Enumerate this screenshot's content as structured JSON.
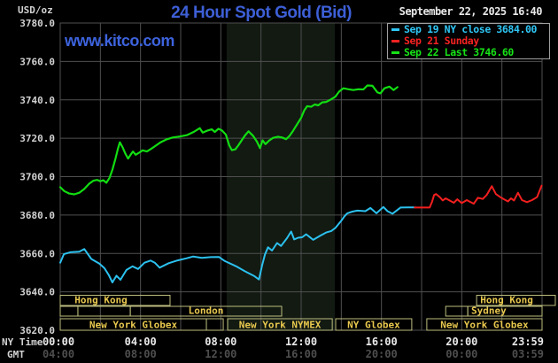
{
  "header": {
    "title": "24 Hour Spot Gold (Bid)",
    "unit_label": "USD/oz",
    "watermark": "www.kitco.com",
    "datetime": "September 22, 2025 16:40"
  },
  "colors": {
    "title_blue": "#3d5fd6",
    "watermark_blue": "#3d63dd",
    "grid": "#4f4f4f",
    "band": "#121a12",
    "axis_text": "#d2d2d2",
    "x_text": "#e9e9e9",
    "gmt_text": "#4e4e4e",
    "session_border": "#bdbd7d",
    "session_text": "#e8c84e",
    "legend_border": "#9f9f9f",
    "white_text": "#e8e8e8"
  },
  "legend": {
    "items": [
      {
        "label": "Sep 19 NY close 3684.00",
        "color": "#2fc6f5"
      },
      {
        "label": "Sep 21 Sunday",
        "color": "#f52222"
      },
      {
        "label": "Sep 22 Last 3746.60",
        "color": "#17e317"
      }
    ]
  },
  "axes": {
    "y_tick_labels": [
      "3780.0",
      "3760.0",
      "3740.0",
      "3720.0",
      "3700.0",
      "3680.0",
      "3660.0",
      "3640.0",
      "3620.0"
    ],
    "y_tick_values": [
      3780,
      3760,
      3740,
      3720,
      3700,
      3680,
      3660,
      3640,
      3620
    ],
    "x_row1_label": "NY Time",
    "x_row2_label": "GMT",
    "x_tick_hours": [
      0,
      4,
      8,
      12,
      16,
      20,
      24
    ],
    "x_row1_ticks": [
      "00:00",
      "04:00",
      "08:00",
      "12:00",
      "16:00",
      "20:00",
      "23:59"
    ],
    "x_row2_ticks": [
      "04:00",
      "08:00",
      "12:00",
      "16:00",
      "20:00",
      "00:00",
      "03:59"
    ]
  },
  "chart_data": {
    "type": "line",
    "title": "24 Hour Spot Gold (Bid)",
    "xlabel": "NY Time (hours)",
    "ylabel": "USD/oz",
    "xlim": [
      0,
      24
    ],
    "ylim": [
      3620,
      3780
    ],
    "grid": true,
    "legend_position": "top-right",
    "nymex_band": {
      "from": 8.29,
      "to": 13.68
    },
    "series": [
      {
        "name": "Sep 19 NY close",
        "color": "#2cc1ef",
        "width": 2,
        "points": [
          [
            0,
            3655.2
          ],
          [
            0.18,
            3659.6
          ],
          [
            0.5,
            3660.6
          ],
          [
            0.95,
            3660.9
          ],
          [
            1.2,
            3662.3
          ],
          [
            1.55,
            3657.1
          ],
          [
            1.95,
            3654.7
          ],
          [
            2.2,
            3652.3
          ],
          [
            2.42,
            3648.7
          ],
          [
            2.6,
            3644.9
          ],
          [
            2.8,
            3648.4
          ],
          [
            3.0,
            3646.3
          ],
          [
            3.3,
            3651.4
          ],
          [
            3.6,
            3653.3
          ],
          [
            3.88,
            3651.9
          ],
          [
            4.2,
            3655.2
          ],
          [
            4.5,
            3656.3
          ],
          [
            4.72,
            3655.1
          ],
          [
            4.95,
            3652.6
          ],
          [
            5.4,
            3654.9
          ],
          [
            5.85,
            3656.4
          ],
          [
            6.3,
            3657.5
          ],
          [
            6.62,
            3658.4
          ],
          [
            7.05,
            3657.7
          ],
          [
            7.5,
            3658.1
          ],
          [
            7.9,
            3658.2
          ],
          [
            8.2,
            3656.0
          ],
          [
            8.8,
            3653.1
          ],
          [
            9.2,
            3650.7
          ],
          [
            9.65,
            3648.3
          ],
          [
            9.9,
            3646.4
          ],
          [
            10.05,
            3653.5
          ],
          [
            10.2,
            3659.5
          ],
          [
            10.35,
            3663.2
          ],
          [
            10.55,
            3661.5
          ],
          [
            10.8,
            3665.4
          ],
          [
            11.0,
            3663.9
          ],
          [
            11.3,
            3668.0
          ],
          [
            11.5,
            3671.4
          ],
          [
            11.65,
            3667.3
          ],
          [
            11.85,
            3668.2
          ],
          [
            12.05,
            3668.4
          ],
          [
            12.25,
            3670.0
          ],
          [
            12.45,
            3668.3
          ],
          [
            12.6,
            3667.1
          ],
          [
            12.95,
            3669.2
          ],
          [
            13.25,
            3670.9
          ],
          [
            13.5,
            3671.7
          ],
          [
            13.7,
            3673.2
          ],
          [
            14.0,
            3677.0
          ],
          [
            14.15,
            3679.2
          ],
          [
            14.3,
            3680.9
          ],
          [
            14.55,
            3681.8
          ],
          [
            14.8,
            3682.3
          ],
          [
            15.2,
            3682.0
          ],
          [
            15.45,
            3683.7
          ],
          [
            15.75,
            3680.9
          ],
          [
            16.1,
            3684.2
          ],
          [
            16.3,
            3682.0
          ],
          [
            16.55,
            3680.7
          ],
          [
            16.95,
            3683.9
          ],
          [
            17.3,
            3684.0
          ],
          [
            17.65,
            3684.0
          ]
        ]
      },
      {
        "name": "Sep 21 Sunday",
        "color": "#f31f1f",
        "width": 2,
        "points": [
          [
            17.65,
            3683.9
          ],
          [
            18.4,
            3683.9
          ],
          [
            18.52,
            3686.9
          ],
          [
            18.62,
            3690.4
          ],
          [
            18.72,
            3690.9
          ],
          [
            18.9,
            3689.4
          ],
          [
            19.05,
            3687.6
          ],
          [
            19.2,
            3688.7
          ],
          [
            19.6,
            3686.4
          ],
          [
            19.78,
            3688.2
          ],
          [
            20.0,
            3686.2
          ],
          [
            20.25,
            3687.8
          ],
          [
            20.6,
            3685.9
          ],
          [
            20.8,
            3689.0
          ],
          [
            21.05,
            3688.4
          ],
          [
            21.25,
            3690.6
          ],
          [
            21.5,
            3695.0
          ],
          [
            21.7,
            3690.9
          ],
          [
            21.95,
            3689.1
          ],
          [
            22.3,
            3687.1
          ],
          [
            22.45,
            3688.7
          ],
          [
            22.6,
            3687.6
          ],
          [
            22.8,
            3691.6
          ],
          [
            23.0,
            3687.8
          ],
          [
            23.25,
            3686.7
          ],
          [
            23.5,
            3687.8
          ],
          [
            23.75,
            3689.3
          ],
          [
            23.98,
            3695.3
          ]
        ]
      },
      {
        "name": "Sep 22 Last",
        "color": "#12dd12",
        "width": 2.2,
        "points": [
          [
            0,
            3694.5
          ],
          [
            0.2,
            3692.5
          ],
          [
            0.45,
            3691.2
          ],
          [
            0.7,
            3690.8
          ],
          [
            0.95,
            3691.6
          ],
          [
            1.2,
            3693.6
          ],
          [
            1.45,
            3696.4
          ],
          [
            1.65,
            3697.9
          ],
          [
            1.85,
            3698.3
          ],
          [
            2.0,
            3697.6
          ],
          [
            2.15,
            3698.1
          ],
          [
            2.3,
            3696.8
          ],
          [
            2.45,
            3699.2
          ],
          [
            2.6,
            3703.6
          ],
          [
            2.75,
            3709.2
          ],
          [
            2.88,
            3714.8
          ],
          [
            2.97,
            3717.9
          ],
          [
            3.1,
            3715.4
          ],
          [
            3.25,
            3711.8
          ],
          [
            3.38,
            3709.4
          ],
          [
            3.52,
            3711.6
          ],
          [
            3.62,
            3713.1
          ],
          [
            3.76,
            3711.4
          ],
          [
            3.92,
            3712.4
          ],
          [
            4.1,
            3713.7
          ],
          [
            4.32,
            3713.1
          ],
          [
            4.55,
            3714.6
          ],
          [
            4.75,
            3716.1
          ],
          [
            5.0,
            3717.9
          ],
          [
            5.3,
            3719.4
          ],
          [
            5.6,
            3720.4
          ],
          [
            5.95,
            3720.9
          ],
          [
            6.3,
            3721.6
          ],
          [
            6.65,
            3723.3
          ],
          [
            6.95,
            3725.2
          ],
          [
            7.1,
            3722.9
          ],
          [
            7.3,
            3723.9
          ],
          [
            7.55,
            3724.6
          ],
          [
            7.7,
            3723.3
          ],
          [
            7.88,
            3724.9
          ],
          [
            8.05,
            3724.1
          ],
          [
            8.25,
            3721.9
          ],
          [
            8.42,
            3716.2
          ],
          [
            8.55,
            3713.8
          ],
          [
            8.72,
            3714.2
          ],
          [
            8.88,
            3716.4
          ],
          [
            9.05,
            3719.1
          ],
          [
            9.2,
            3721.4
          ],
          [
            9.38,
            3723.6
          ],
          [
            9.6,
            3721.3
          ],
          [
            9.8,
            3718.2
          ],
          [
            9.95,
            3714.9
          ],
          [
            10.08,
            3718.9
          ],
          [
            10.22,
            3716.9
          ],
          [
            10.4,
            3718.7
          ],
          [
            10.6,
            3720.2
          ],
          [
            10.85,
            3720.8
          ],
          [
            11.05,
            3720.4
          ],
          [
            11.25,
            3719.5
          ],
          [
            11.42,
            3721.2
          ],
          [
            11.6,
            3723.9
          ],
          [
            11.8,
            3727.3
          ],
          [
            12.0,
            3730.6
          ],
          [
            12.15,
            3734.4
          ],
          [
            12.3,
            3736.7
          ],
          [
            12.5,
            3736.4
          ],
          [
            12.68,
            3737.6
          ],
          [
            12.85,
            3737.1
          ],
          [
            13.05,
            3738.7
          ],
          [
            13.25,
            3738.9
          ],
          [
            13.5,
            3740.3
          ],
          [
            13.7,
            3741.6
          ],
          [
            13.9,
            3744.4
          ],
          [
            14.1,
            3746.0
          ],
          [
            14.35,
            3745.5
          ],
          [
            14.6,
            3745.1
          ],
          [
            14.85,
            3745.5
          ],
          [
            15.1,
            3745.4
          ],
          [
            15.3,
            3747.5
          ],
          [
            15.55,
            3747.3
          ],
          [
            15.8,
            3743.9
          ],
          [
            15.95,
            3743.4
          ],
          [
            16.15,
            3746.0
          ],
          [
            16.4,
            3746.9
          ],
          [
            16.6,
            3745.1
          ],
          [
            16.8,
            3746.6
          ]
        ]
      }
    ],
    "sessions": [
      {
        "row": 1,
        "boxes": [
          {
            "from": 0,
            "to": 5.47,
            "label": "Hong Kong",
            "label_at": 2.03
          },
          {
            "from": 20.74,
            "to": 24.66,
            "label": "Hong Kong",
            "label_at": 22.24
          }
        ]
      },
      {
        "row": 2,
        "boxes": [
          {
            "from": 0,
            "to": 0.88,
            "label": ""
          },
          {
            "from": 0.88,
            "to": 3.49,
            "label": ""
          },
          {
            "from": 3.49,
            "to": 11.03,
            "label": "London"
          },
          {
            "from": 19.2,
            "to": 20.3,
            "label": ""
          },
          {
            "from": 20.3,
            "to": 24.0,
            "label": "Sydney",
            "label_at": 21.35
          }
        ]
      },
      {
        "row": 3,
        "boxes": [
          {
            "from": 0,
            "to": 7.28,
            "label": "New York Globex"
          },
          {
            "from": 7.28,
            "to": 8.12,
            "label": ""
          },
          {
            "from": 8.34,
            "to": 13.55,
            "label": "New York NYMEX"
          },
          {
            "from": 13.72,
            "to": 17.51,
            "label": "NY Globex"
          },
          {
            "from": 18.26,
            "to": 24.0,
            "label": "New York Globex"
          }
        ]
      }
    ]
  }
}
